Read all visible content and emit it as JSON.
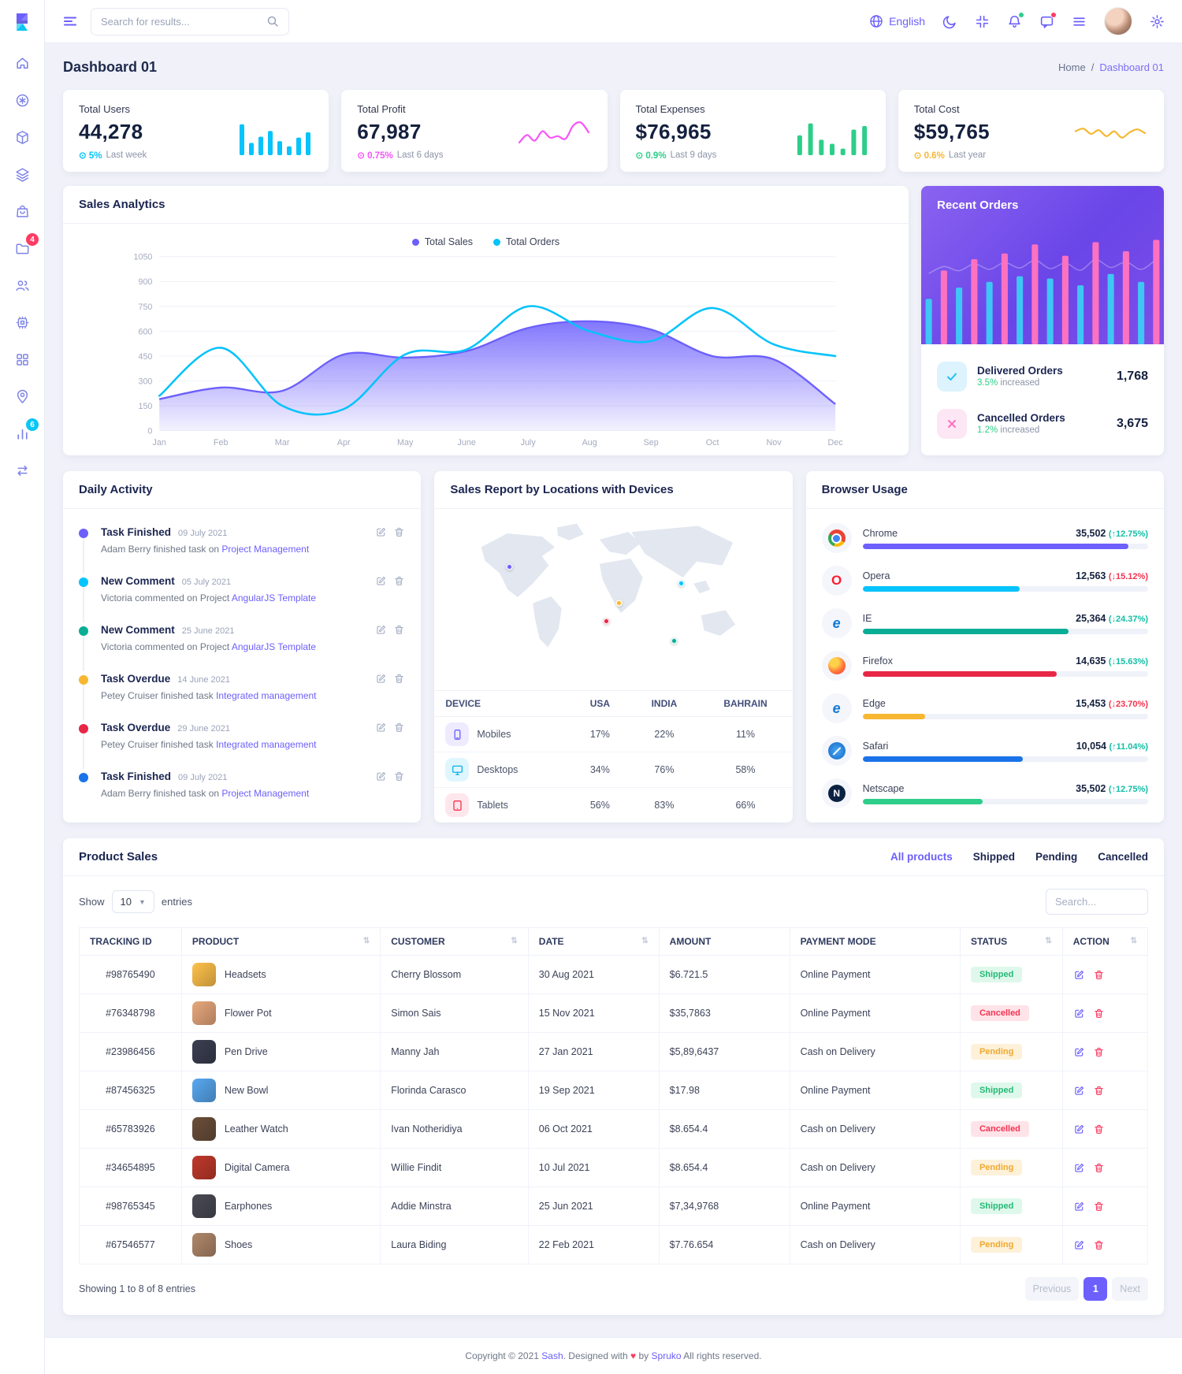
{
  "topbar": {
    "search_placeholder": "Search for results...",
    "language": "English"
  },
  "sidebar": {
    "folder_badge": "4",
    "chart_badge": "6",
    "icons": [
      "home-icon",
      "asterisk-circle-icon",
      "package-icon",
      "layers-icon",
      "shopping-bag-icon",
      "folder-icon",
      "users-icon",
      "cpu-icon",
      "grid-icon",
      "map-pin-icon",
      "bar-chart-icon",
      "switch-horizontal-icon"
    ]
  },
  "page": {
    "title": "Dashboard 01",
    "breadcrumb_home": "Home",
    "breadcrumb_sep": "/",
    "breadcrumb_current": "Dashboard 01"
  },
  "stat_cards": [
    {
      "label": "Total Users",
      "value": "44,278",
      "delta": "5%",
      "note": "Last week",
      "color": "#05c3fb"
    },
    {
      "label": "Total Profit",
      "value": "67,987",
      "delta": "0.75%",
      "note": "Last 6 days",
      "color": "#f754fa"
    },
    {
      "label": "Total Expenses",
      "value": "$76,965",
      "delta": "0.9%",
      "note": "Last 9 days",
      "color": "#2dce89"
    },
    {
      "label": "Total Cost",
      "value": "$59,765",
      "delta": "0.6%",
      "note": "Last year",
      "color": "#f7b731"
    }
  ],
  "sales_analytics": {
    "title": "Sales Analytics",
    "legend": [
      "Total Sales",
      "Total Orders"
    ]
  },
  "recent_orders": {
    "title": "Recent Orders",
    "items": [
      {
        "icon": "check",
        "label": "Delivered Orders",
        "pct": "3.5%",
        "sub": "increased",
        "value": "1,768"
      },
      {
        "icon": "cross",
        "label": "Cancelled Orders",
        "pct": "1.2%",
        "sub": "increased",
        "value": "3,675"
      }
    ]
  },
  "daily_activity": {
    "title": "Daily Activity",
    "items": [
      {
        "dot": "#6c5ffc",
        "title": "Task Finished",
        "date": "09 July 2021",
        "text": "Adam Berry finished task on",
        "link": "Project Management"
      },
      {
        "dot": "#05c3fb",
        "title": "New Comment",
        "date": "05 July 2021",
        "text": "Victoria commented on Project",
        "link": "AngularJS Template"
      },
      {
        "dot": "#09ad95",
        "title": "New Comment",
        "date": "25 June 2021",
        "text": "Victoria commented on Project",
        "link": "AngularJS Template"
      },
      {
        "dot": "#f7b731",
        "title": "Task Overdue",
        "date": "14 June 2021",
        "text": "Petey Cruiser finished task",
        "link": "Integrated management"
      },
      {
        "dot": "#e82646",
        "title": "Task Overdue",
        "date": "29 June 2021",
        "text": "Petey Cruiser finished task",
        "link": "Integrated management"
      },
      {
        "dot": "#1a73e8",
        "title": "Task Finished",
        "date": "09 July 2021",
        "text": "Adam Berry finished task on",
        "link": "Project Management"
      }
    ]
  },
  "sales_report": {
    "title": "Sales Report by Locations with Devices",
    "columns": [
      "DEVICE",
      "USA",
      "INDIA",
      "BAHRAIN"
    ],
    "rows": [
      {
        "icon": "mobile",
        "name": "Mobiles",
        "usa": "17%",
        "india": "22%",
        "bahrain": "11%"
      },
      {
        "icon": "desktop",
        "name": "Desktops",
        "usa": "34%",
        "india": "76%",
        "bahrain": "58%"
      },
      {
        "icon": "tablet",
        "name": "Tablets",
        "usa": "56%",
        "india": "83%",
        "bahrain": "66%"
      }
    ],
    "map_points": [
      {
        "color": "#6c5ffc",
        "x": 20,
        "y": 30
      },
      {
        "color": "#f7b731",
        "x": 50.5,
        "y": 50
      },
      {
        "color": "#e82646",
        "x": 47,
        "y": 60
      },
      {
        "color": "#09ad95",
        "x": 66,
        "y": 71
      },
      {
        "color": "#05c3fb",
        "x": 68,
        "y": 39
      }
    ]
  },
  "browser_usage": {
    "title": "Browser Usage",
    "rows": [
      {
        "icon": "chrome",
        "letter": "",
        "name": "Chrome",
        "value": "35,502",
        "dir": "up",
        "change": "12.75%",
        "change_tone": "up",
        "bar_color": "#6c5ffc",
        "bar_pct": 93
      },
      {
        "icon": "opera",
        "letter": "O",
        "name": "Opera",
        "value": "12,563",
        "dir": "down",
        "change": "15.12%",
        "change_tone": "down",
        "bar_color": "#05c3fb",
        "bar_pct": 55
      },
      {
        "icon": "ie",
        "letter": "e",
        "name": "IE",
        "value": "25,364",
        "dir": "down",
        "change": "24.37%",
        "change_tone": "up",
        "bar_color": "#09ad95",
        "bar_pct": 72
      },
      {
        "icon": "firefox",
        "letter": "",
        "name": "Firefox",
        "value": "14,635",
        "dir": "down",
        "change": "15.63%",
        "change_tone": "up",
        "bar_color": "#e82646",
        "bar_pct": 68
      },
      {
        "icon": "edge",
        "letter": "e",
        "name": "Edge",
        "value": "15,453",
        "dir": "down",
        "change": "23.70%",
        "change_tone": "down",
        "bar_color": "#f7b731",
        "bar_pct": 22
      },
      {
        "icon": "safari",
        "letter": "",
        "name": "Safari",
        "value": "10,054",
        "dir": "up",
        "change": "11.04%",
        "change_tone": "up",
        "bar_color": "#1a73e8",
        "bar_pct": 56
      },
      {
        "icon": "netscape",
        "letter": "N",
        "name": "Netscape",
        "value": "35,502",
        "dir": "up",
        "change": "12.75%",
        "change_tone": "up",
        "bar_color": "#2dce89",
        "bar_pct": 42
      }
    ]
  },
  "product_sales": {
    "title": "Product Sales",
    "tabs": [
      "All products",
      "Shipped",
      "Pending",
      "Cancelled"
    ],
    "show_label": "Show",
    "entries_value": "10",
    "entries_label": "entries",
    "search_placeholder": "Search...",
    "columns": [
      {
        "label": "TRACKING ID",
        "sortable": false
      },
      {
        "label": "PRODUCT",
        "sortable": true
      },
      {
        "label": "CUSTOMER",
        "sortable": true
      },
      {
        "label": "DATE",
        "sortable": true
      },
      {
        "label": "AMOUNT",
        "sortable": false
      },
      {
        "label": "PAYMENT MODE",
        "sortable": false
      },
      {
        "label": "STATUS",
        "sortable": true
      },
      {
        "label": "ACTION",
        "sortable": true
      }
    ],
    "rows": [
      {
        "id": "#98765490",
        "icon_color": "#ffc24b",
        "product": "Headsets",
        "customer": "Cherry Blossom",
        "date": "30 Aug 2021",
        "amount": "$6.721.5",
        "payment": "Online Payment",
        "status": "Shipped"
      },
      {
        "id": "#76348798",
        "icon_color": "#e8a87c",
        "product": "Flower Pot",
        "customer": "Simon Sais",
        "date": "15 Nov 2021",
        "amount": "$35,7863",
        "payment": "Online Payment",
        "status": "Cancelled"
      },
      {
        "id": "#23986456",
        "icon_color": "#3b3f51",
        "product": "Pen Drive",
        "customer": "Manny Jah",
        "date": "27 Jan 2021",
        "amount": "$5,89,6437",
        "payment": "Cash on Delivery",
        "status": "Pending"
      },
      {
        "id": "#87456325",
        "icon_color": "#58a8f0",
        "product": "New Bowl",
        "customer": "Florinda Carasco",
        "date": "19 Sep 2021",
        "amount": "$17.98",
        "payment": "Online Payment",
        "status": "Shipped"
      },
      {
        "id": "#65783926",
        "icon_color": "#6b4f3a",
        "product": "Leather Watch",
        "customer": "Ivan Notheridiya",
        "date": "06 Oct 2021",
        "amount": "$8.654.4",
        "payment": "Cash on Delivery",
        "status": "Cancelled"
      },
      {
        "id": "#34654895",
        "icon_color": "#c0392b",
        "product": "Digital Camera",
        "customer": "Willie Findit",
        "date": "10 Jul 2021",
        "amount": "$8.654.4",
        "payment": "Cash on Delivery",
        "status": "Pending"
      },
      {
        "id": "#98765345",
        "icon_color": "#4a4a55",
        "product": "Earphones",
        "customer": "Addie Minstra",
        "date": "25 Jun 2021",
        "amount": "$7,34,9768",
        "payment": "Online Payment",
        "status": "Shipped"
      },
      {
        "id": "#67546577",
        "icon_color": "#b0886a",
        "product": "Shoes",
        "customer": "Laura Biding",
        "date": "22 Feb 2021",
        "amount": "$7.76.654",
        "payment": "Cash on Delivery",
        "status": "Pending"
      }
    ],
    "footer_text": "Showing 1 to 8 of 8 entries",
    "pagination": {
      "prev": "Previous",
      "page": "1",
      "next": "Next"
    }
  },
  "footer": {
    "copyright": "Copyright © 2021",
    "brand": "Sash",
    "designed": ". Designed with",
    "heart": "♥",
    "by": "by",
    "author": "Spruko",
    "rights": "All rights reserved."
  },
  "chart_data": [
    {
      "id": "sales-analytics",
      "type": "area",
      "title": "Sales Analytics",
      "categories": [
        "Jan",
        "Feb",
        "Mar",
        "Apr",
        "May",
        "June",
        "July",
        "Aug",
        "Sep",
        "Oct",
        "Nov",
        "Dec"
      ],
      "ylim": [
        0,
        1050
      ],
      "yticks": [
        1050,
        900,
        750,
        600,
        450,
        300,
        150,
        0
      ],
      "grid": true,
      "legend_position": "top-center",
      "series": [
        {
          "name": "Total Sales",
          "kind": "area",
          "color": "#6c5ffc",
          "values": [
            190,
            260,
            240,
            460,
            440,
            480,
            620,
            660,
            610,
            450,
            430,
            160
          ]
        },
        {
          "name": "Total Orders",
          "kind": "line",
          "color": "#05c3fb",
          "values": [
            210,
            500,
            150,
            130,
            460,
            490,
            750,
            600,
            540,
            740,
            520,
            450
          ]
        }
      ]
    },
    {
      "id": "recent-orders-bars",
      "type": "bar",
      "values": [
        40,
        65,
        50,
        75,
        55,
        80,
        60,
        88,
        58,
        78,
        52,
        90,
        62,
        82,
        55,
        92
      ],
      "colors": [
        "#3ec7f4",
        "#fd71c1"
      ],
      "overlay_line": true
    },
    {
      "id": "users-spark",
      "type": "bar",
      "values": [
        70,
        28,
        42,
        55,
        32,
        20,
        40,
        52
      ],
      "color": "#05c3fb"
    },
    {
      "id": "profit-spark",
      "type": "line",
      "values": [
        25,
        45,
        30,
        55,
        38,
        42,
        35,
        70,
        78,
        52
      ],
      "color": "#f754fa"
    },
    {
      "id": "expenses-spark",
      "type": "bar",
      "values": [
        45,
        72,
        35,
        26,
        15,
        58,
        66
      ],
      "color": "#2dce89"
    },
    {
      "id": "cost-spark",
      "type": "line",
      "values": [
        55,
        62,
        48,
        58,
        42,
        55,
        38,
        52,
        60,
        50
      ],
      "color": "#f7b731"
    }
  ]
}
